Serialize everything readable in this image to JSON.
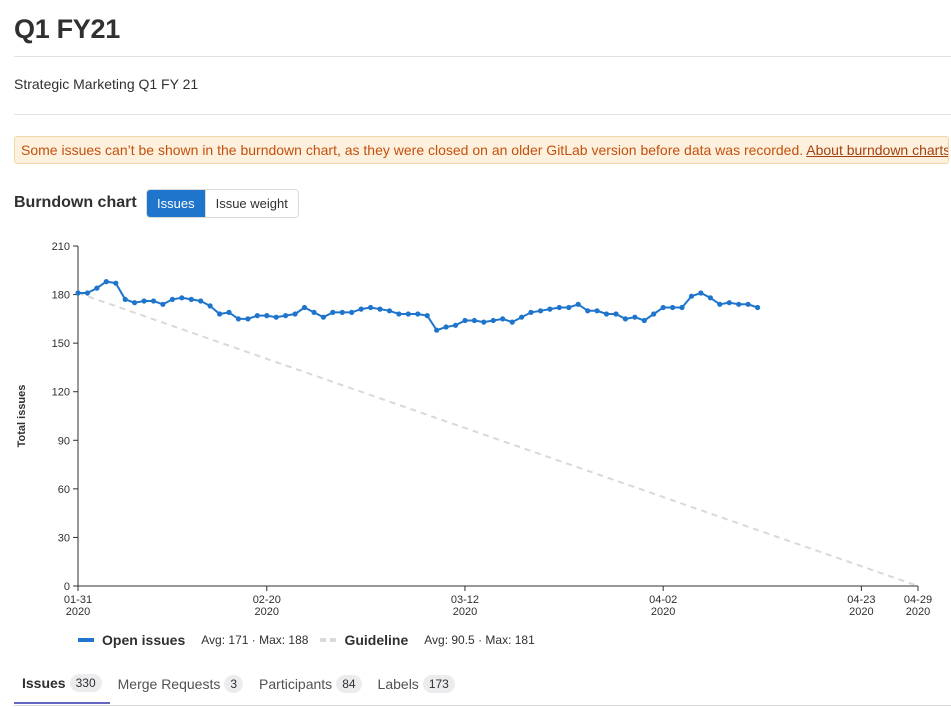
{
  "page": {
    "title": "Q1 FY21",
    "description": "Strategic Marketing Q1 FY 21"
  },
  "alert": {
    "text": "Some issues can’t be shown in the burndown chart, as they were closed on an older GitLab version before data was recorded.",
    "link": "About burndown charts"
  },
  "burndown": {
    "heading": "Burndown chart",
    "toggle": {
      "issues": "Issues",
      "weight": "Issue weight",
      "active": "issues"
    }
  },
  "legend": {
    "open": {
      "name": "Open issues",
      "stats": "Avg: 171 · Max: 188"
    },
    "guide": {
      "name": "Guideline",
      "stats": "Avg: 90.5 · Max: 181"
    }
  },
  "tabs": [
    {
      "label": "Issues",
      "count": "330",
      "active": true
    },
    {
      "label": "Merge Requests",
      "count": "3",
      "active": false
    },
    {
      "label": "Participants",
      "count": "84",
      "active": false
    },
    {
      "label": "Labels",
      "count": "173",
      "active": false
    }
  ],
  "colors": {
    "primary": "#1f75cb",
    "guide": "#d9d9d9",
    "warning_bg": "#fdf1dd",
    "warning_text": "#c4500e"
  },
  "chart_data": {
    "type": "line",
    "ylabel": "Total issues",
    "xlabel": "",
    "ylim": [
      0,
      210
    ],
    "yticks": [
      0,
      30,
      60,
      90,
      120,
      150,
      180,
      210
    ],
    "x_start": "2020-01-31",
    "x_end": "2020-04-29",
    "xticks": [
      {
        "date": "2020-01-31",
        "label": "01-31",
        "year": "2020"
      },
      {
        "date": "2020-02-20",
        "label": "02-20",
        "year": "2020"
      },
      {
        "date": "2020-03-12",
        "label": "03-12",
        "year": "2020"
      },
      {
        "date": "2020-04-02",
        "label": "04-02",
        "year": "2020"
      },
      {
        "date": "2020-04-23",
        "label": "04-23",
        "year": "2020"
      },
      {
        "date": "2020-04-29",
        "label": "04-29",
        "year": "2020"
      }
    ],
    "series": [
      {
        "name": "Open issues",
        "color": "#1f75cb",
        "start": "2020-01-31",
        "values": [
          181,
          181,
          184,
          188,
          187,
          177,
          175,
          176,
          176,
          174,
          177,
          178,
          177,
          176,
          173,
          168,
          169,
          165,
          165,
          167,
          167,
          166,
          167,
          168,
          172,
          169,
          166,
          169,
          169,
          169,
          171,
          172,
          171,
          170,
          168,
          168,
          168,
          167,
          158,
          160,
          161,
          164,
          164,
          163,
          164,
          165,
          163,
          166,
          169,
          170,
          171,
          172,
          172,
          174,
          170,
          170,
          168,
          168,
          165,
          166,
          164,
          168,
          172,
          172,
          172,
          179,
          181,
          178,
          174,
          175,
          174,
          174,
          172
        ]
      },
      {
        "name": "Guideline",
        "color": "#d9d9d9",
        "dashed": true,
        "points": [
          {
            "date": "2020-01-31",
            "value": 181
          },
          {
            "date": "2020-04-29",
            "value": 0
          }
        ]
      }
    ]
  }
}
